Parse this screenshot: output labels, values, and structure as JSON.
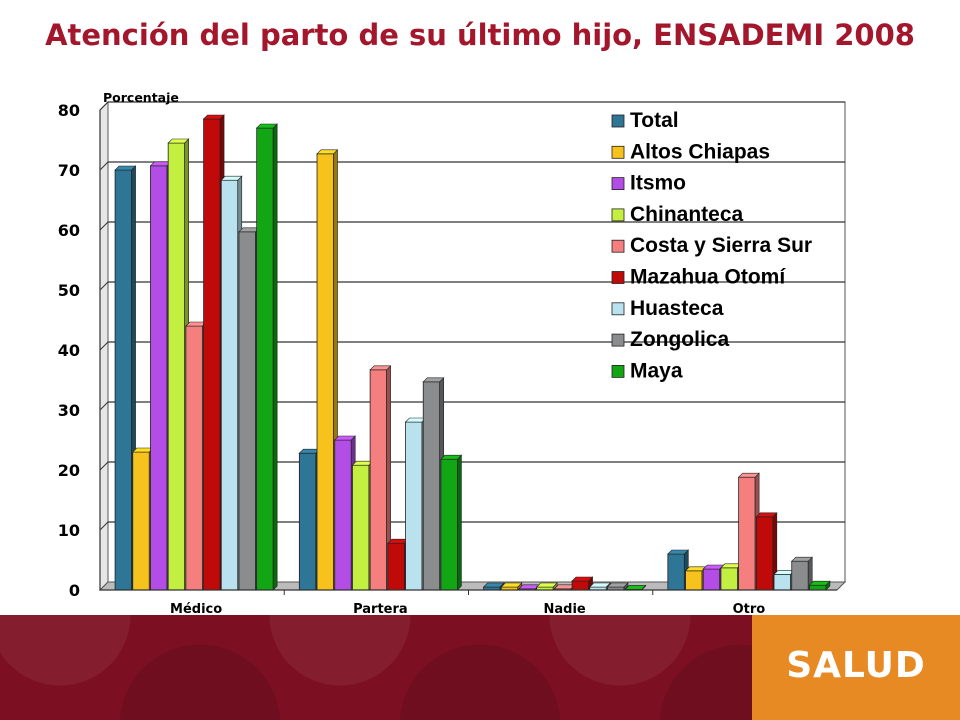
{
  "page": {
    "title": "Atención del parto de su último hijo, ENSADEMI 2008",
    "brand": "SALUD",
    "colors": {
      "title": "#a3162b",
      "footer_red": "#7c1022",
      "footer_orange": "#e88a24"
    }
  },
  "chart_data": {
    "type": "bar",
    "title": "Atención del parto de su último hijo, ENSADEMI 2008",
    "ylabel": "Porcentaje",
    "xlabel": "",
    "ylim": [
      0,
      80
    ],
    "yticks": [
      0,
      10,
      20,
      30,
      40,
      50,
      60,
      70,
      80
    ],
    "grid": true,
    "legend_position": "top-right",
    "categories": [
      "Médico",
      "Partera",
      "Nadie",
      "Otro"
    ],
    "series": [
      {
        "name": "Total",
        "color": "#2e7596",
        "values": [
          70,
          22.8,
          0.5,
          6
        ]
      },
      {
        "name": "Altos Chiapas",
        "color": "#f7c21b",
        "values": [
          23,
          72.7,
          0.5,
          3.2
        ]
      },
      {
        "name": "Itsmo",
        "color": "#b24ee6",
        "values": [
          70.7,
          25,
          0.2,
          3.5
        ]
      },
      {
        "name": "Chinanteca",
        "color": "#c3f040",
        "values": [
          74.5,
          20.8,
          0.5,
          3.7
        ]
      },
      {
        "name": "Costa y Sierra Sur",
        "color": "#f57f7f",
        "values": [
          44,
          36.7,
          0.2,
          18.8
        ]
      },
      {
        "name": "Mazahua Otomí",
        "color": "#c00a0a",
        "values": [
          78.5,
          7.8,
          1.5,
          12.2
        ]
      },
      {
        "name": "Huasteca",
        "color": "#b9e2ee",
        "values": [
          68.3,
          28,
          0.5,
          2.6
        ]
      },
      {
        "name": "Zongolica",
        "color": "#8a8c8e",
        "values": [
          59.7,
          34.7,
          0.5,
          4.8
        ]
      },
      {
        "name": "Maya",
        "color": "#12a614",
        "values": [
          77,
          21.8,
          0.1,
          0.8
        ]
      }
    ]
  }
}
